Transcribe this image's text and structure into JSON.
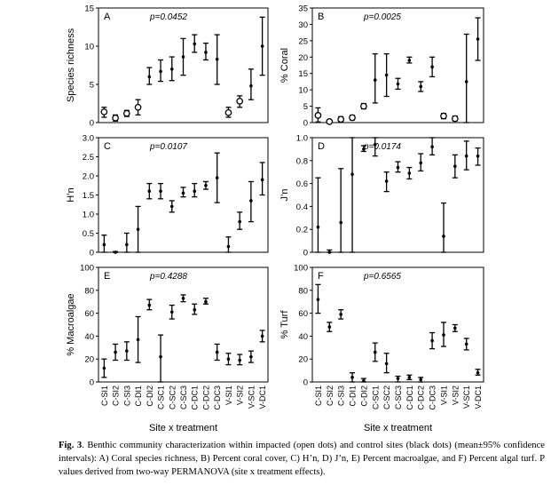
{
  "site_labels": [
    "C-SI1",
    "C-SI2",
    "C-SI3",
    "C-DI1",
    "C-DI2",
    "C-SC1",
    "C-SC2",
    "C-SC3",
    "C-DC1",
    "C-DC2",
    "C-DC3",
    "V-SI1",
    "V-SI2",
    "V-SC1",
    "V-DC1"
  ],
  "xlabel": "Site x treatment",
  "caption": {
    "fig": "Fig.",
    "num": "3",
    "text": ". Benthic community characterization within impacted (open dots) and control sites (black dots) (mean±95% confidence intervals): A) Coral species richness, B) Percent coral cover, C) H’n, D) J’n, E) Percent macroalgae, and F) Percent algal turf. P values derived from two-way PERMANOVA (site x treatment effects)."
  },
  "chart_data": [
    {
      "type": "scatter",
      "panel": "A",
      "p_text": "p=0.0452",
      "ylabel": "Species richness",
      "ylim": [
        0,
        15
      ],
      "yticks": [
        "0",
        "5",
        "10",
        "15"
      ],
      "tick_values": [
        0,
        5,
        10,
        15
      ],
      "categories": [
        "C-SI1",
        "C-SI2",
        "C-SI3",
        "C-DI1",
        "C-DI2",
        "C-SC1",
        "C-SC2",
        "C-SC3",
        "C-DC1",
        "C-DC2",
        "C-DC3",
        "V-SI1",
        "V-SI2",
        "V-SC1",
        "V-DC1"
      ],
      "impacted": [
        true,
        true,
        true,
        true,
        false,
        false,
        false,
        false,
        false,
        false,
        false,
        true,
        true,
        false,
        false
      ],
      "mean": [
        1.4,
        0.6,
        1.2,
        2.0,
        6.0,
        6.7,
        7.0,
        8.6,
        10.3,
        9.2,
        8.3,
        1.3,
        2.8,
        4.8,
        10.0
      ],
      "lower": [
        0.7,
        0.2,
        0.8,
        1.0,
        5.0,
        5.4,
        5.5,
        6.2,
        9.2,
        8.2,
        5.0,
        0.7,
        2.0,
        3.0,
        6.2
      ],
      "upper": [
        2.0,
        1.0,
        1.6,
        3.0,
        7.2,
        8.2,
        8.6,
        11.0,
        11.5,
        10.4,
        11.5,
        2.0,
        3.5,
        7.0,
        13.8
      ]
    },
    {
      "type": "scatter",
      "panel": "B",
      "p_text": "p=0.0025",
      "ylabel": "% Coral",
      "ylim": [
        0,
        35
      ],
      "yticks": [
        "0",
        "5",
        "10",
        "15",
        "20",
        "25",
        "30",
        "35"
      ],
      "tick_values": [
        0,
        5,
        10,
        15,
        20,
        25,
        30,
        35
      ],
      "categories": [
        "C-SI1",
        "C-SI2",
        "C-SI3",
        "C-DI1",
        "C-DI2",
        "C-SC1",
        "C-SC2",
        "C-SC3",
        "C-DC1",
        "C-DC2",
        "C-DC3",
        "V-SI1",
        "V-SI2",
        "V-SC1",
        "V-DC1"
      ],
      "impacted": [
        true,
        true,
        true,
        true,
        true,
        false,
        false,
        false,
        false,
        false,
        false,
        true,
        true,
        false,
        false
      ],
      "mean": [
        2.2,
        0.3,
        1.0,
        1.5,
        5.0,
        13.0,
        14.5,
        11.8,
        19.0,
        11.0,
        17.0,
        2.0,
        1.2,
        12.5,
        25.5
      ],
      "lower": [
        0.2,
        0.0,
        0.2,
        0.8,
        4.2,
        6.0,
        8.0,
        10.2,
        18.2,
        9.5,
        14.0,
        1.2,
        0.5,
        0.0,
        19.0
      ],
      "upper": [
        4.5,
        0.8,
        1.8,
        2.2,
        5.8,
        21.0,
        21.0,
        13.5,
        20.0,
        12.5,
        20.0,
        2.8,
        2.0,
        27.0,
        32.0
      ]
    },
    {
      "type": "scatter",
      "panel": "C",
      "p_text": "p=0.0107",
      "ylabel": "H’n",
      "ylim": [
        0,
        3.0
      ],
      "yticks": [
        "0",
        "0.5",
        "1.0",
        "1.5",
        "2.0",
        "2.5",
        "3.0"
      ],
      "tick_values": [
        0,
        0.5,
        1.0,
        1.5,
        2.0,
        2.5,
        3.0
      ],
      "categories": [
        "C-SI1",
        "C-SI2",
        "C-SI3",
        "C-DI1",
        "C-DI2",
        "C-SC1",
        "C-SC2",
        "C-SC3",
        "C-DC1",
        "C-DC2",
        "C-DC3",
        "V-SI1",
        "V-SI2",
        "V-SC1",
        "V-DC1"
      ],
      "impacted": [
        false,
        false,
        false,
        false,
        false,
        false,
        false,
        false,
        false,
        false,
        false,
        false,
        false,
        false,
        false
      ],
      "mean": [
        0.2,
        0.0,
        0.2,
        0.6,
        1.6,
        1.6,
        1.2,
        1.55,
        1.6,
        1.75,
        1.95,
        0.15,
        0.8,
        1.35,
        1.9
      ],
      "lower": [
        0.0,
        0.0,
        0.0,
        0.0,
        1.4,
        1.4,
        1.05,
        1.45,
        1.45,
        1.65,
        1.3,
        0.0,
        0.6,
        0.8,
        1.5
      ],
      "upper": [
        0.45,
        0.02,
        0.5,
        1.2,
        1.8,
        1.8,
        1.35,
        1.7,
        1.8,
        1.85,
        2.6,
        0.4,
        1.05,
        1.85,
        2.35
      ]
    },
    {
      "type": "scatter",
      "panel": "D",
      "p_text": "p=0.0174",
      "ylabel": "J’n",
      "ylim": [
        0,
        1.0
      ],
      "yticks": [
        "0",
        "0.2",
        "0.4",
        "0.6",
        "0.8",
        "1.0"
      ],
      "tick_values": [
        0,
        0.2,
        0.4,
        0.6,
        0.8,
        1.0
      ],
      "categories": [
        "C-SI1",
        "C-SI2",
        "C-SI3",
        "C-DI1",
        "C-DI2",
        "C-SC1",
        "C-SC2",
        "C-SC3",
        "C-DC1",
        "C-DC2",
        "C-DC3",
        "V-SI1",
        "V-SI2",
        "V-SC1",
        "V-DC1"
      ],
      "impacted": [
        false,
        false,
        false,
        false,
        false,
        false,
        false,
        false,
        false,
        false,
        false,
        false,
        false,
        false,
        false
      ],
      "mean": [
        0.22,
        0.0,
        0.26,
        0.68,
        0.9,
        0.94,
        0.62,
        0.74,
        0.69,
        0.78,
        0.92,
        0.14,
        0.75,
        0.84,
        0.84
      ],
      "lower": [
        0.0,
        0.0,
        0.0,
        0.0,
        0.88,
        0.84,
        0.53,
        0.7,
        0.64,
        0.71,
        0.85,
        0.0,
        0.65,
        0.72,
        0.76
      ],
      "upper": [
        0.65,
        0.02,
        0.73,
        1.0,
        0.93,
        1.0,
        0.7,
        0.79,
        0.74,
        0.86,
        1.0,
        0.43,
        0.85,
        0.97,
        0.91
      ]
    },
    {
      "type": "scatter",
      "panel": "E",
      "p_text": "p=0.4288",
      "ylabel": "% Macroalgae",
      "ylim": [
        0,
        100
      ],
      "yticks": [
        "0",
        "20",
        "40",
        "60",
        "80",
        "100"
      ],
      "tick_values": [
        0,
        20,
        40,
        60,
        80,
        100
      ],
      "categories": [
        "C-SI1",
        "C-SI2",
        "C-SI3",
        "C-DI1",
        "C-DI2",
        "C-SC1",
        "C-SC2",
        "C-SC3",
        "C-DC1",
        "C-DC2",
        "C-DC3",
        "V-SI1",
        "V-SI2",
        "V-SC1",
        "V-DC1"
      ],
      "impacted": [
        false,
        false,
        false,
        false,
        false,
        false,
        false,
        false,
        false,
        false,
        false,
        false,
        false,
        false,
        false
      ],
      "mean": [
        12,
        26,
        27,
        37,
        67,
        22,
        61,
        73,
        63,
        70,
        26,
        20,
        19,
        22,
        40
      ],
      "lower": [
        4,
        19,
        19,
        17,
        63,
        0,
        55,
        70,
        59,
        68,
        19,
        15,
        15,
        17,
        35
      ],
      "upper": [
        20,
        33,
        35,
        57,
        72,
        41,
        67,
        76,
        68,
        73,
        33,
        25,
        24,
        27,
        45
      ]
    },
    {
      "type": "scatter",
      "panel": "F",
      "p_text": "p=0.6565",
      "ylabel": "% Turf",
      "ylim": [
        0,
        100
      ],
      "yticks": [
        "0",
        "20",
        "40",
        "60",
        "80",
        "100"
      ],
      "tick_values": [
        0,
        20,
        40,
        60,
        80,
        100
      ],
      "categories": [
        "C-SI1",
        "C-SI2",
        "C-SI3",
        "C-DI1",
        "C-DI2",
        "C-SC1",
        "C-SC2",
        "C-SC3",
        "C-DC1",
        "C-DC2",
        "C-DC3",
        "V-SI1",
        "V-SI2",
        "V-SC1",
        "V-DC1"
      ],
      "impacted": [
        false,
        false,
        false,
        false,
        false,
        false,
        false,
        false,
        false,
        false,
        false,
        false,
        false,
        false,
        false
      ],
      "mean": [
        72,
        48,
        59,
        4,
        1,
        26,
        16,
        3,
        4,
        2,
        36,
        41,
        47,
        33,
        8
      ],
      "lower": [
        60,
        44,
        55,
        0,
        0,
        18,
        8,
        0,
        2,
        0,
        29,
        31,
        44,
        28,
        6
      ],
      "upper": [
        85,
        52,
        63,
        8,
        3,
        34,
        25,
        5,
        6,
        4,
        43,
        52,
        50,
        38,
        11
      ]
    }
  ]
}
